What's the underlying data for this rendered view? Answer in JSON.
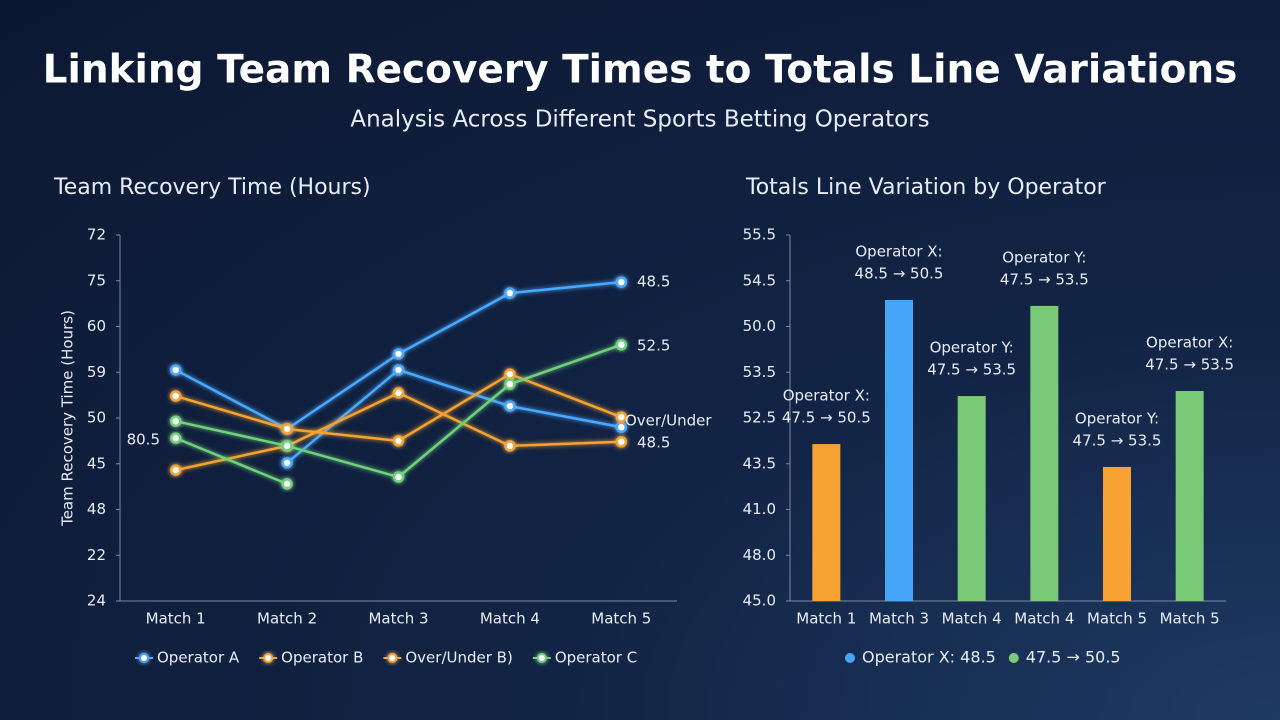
{
  "header": {
    "title": "Linking Team Recovery Times to Totals Line Variations",
    "subtitle": "Analysis Across Different Sports Betting Operators"
  },
  "chart_data": [
    {
      "type": "line",
      "title": "Team Recovery Time (Hours)",
      "y_label": "Team Recovery Time (Hours)",
      "categories": [
        "Match 1",
        "Match 2",
        "Match 3",
        "Match 4",
        "Match 5"
      ],
      "ylim": [
        0,
        8
      ],
      "yticks": [
        {
          "value": 0,
          "label": "24"
        },
        {
          "value": 1,
          "label": "22"
        },
        {
          "value": 2,
          "label": "48"
        },
        {
          "value": 3,
          "label": "45"
        },
        {
          "value": 4,
          "label": "50"
        },
        {
          "value": 5,
          "label": "59"
        },
        {
          "value": 6,
          "label": "60"
        },
        {
          "value": 7,
          "label": "75"
        },
        {
          "value": 8,
          "label": "72"
        }
      ],
      "grid": false,
      "series": [
        {
          "name": "Operator A",
          "color": "#4aa8ff",
          "values": [
            5.05,
            3.76,
            5.4,
            6.73,
            6.97
          ]
        },
        {
          "color": "#4aa8ff",
          "values": [
            null,
            3.02,
            5.05,
            4.26,
            3.8
          ]
        },
        {
          "name": "Operator B",
          "color": "#f5a32e",
          "values": [
            2.86,
            3.39,
            4.55,
            3.39,
            3.48
          ]
        },
        {
          "name": "Over/Under B)",
          "color": "#f5a32e",
          "values": [
            4.48,
            3.76,
            3.5,
            4.96,
            4.02
          ]
        },
        {
          "name": "Operator C",
          "color": "#6fd17a",
          "values": [
            3.93,
            3.39,
            2.71,
            4.74,
            5.6
          ]
        },
        {
          "color": "#6fd17a",
          "values": [
            3.56,
            2.56,
            null,
            null,
            null
          ]
        }
      ],
      "annotations": [
        "48.5",
        "52.5",
        "Over/Under",
        "48.5",
        "80.5"
      ]
    },
    {
      "type": "bar",
      "title": "Totals Line Variation by Operator",
      "categories": [
        "Match 1",
        "Match 3",
        "Match 4",
        "Match 4",
        "Match 5",
        "Match 5"
      ],
      "values": [
        3.43,
        6.58,
        4.48,
        6.45,
        2.93,
        4.59
      ],
      "colors": [
        "#f7a334",
        "#45a6f7",
        "#79c977",
        "#79c977",
        "#f7a334",
        "#79c977"
      ],
      "ylim": [
        0,
        8
      ],
      "yticks": [
        {
          "value": 0,
          "label": "45.0"
        },
        {
          "value": 1,
          "label": "48.0"
        },
        {
          "value": 2,
          "label": "41.0"
        },
        {
          "value": 3,
          "label": "43.5"
        },
        {
          "value": 4,
          "label": "52.5"
        },
        {
          "value": 5,
          "label": "53.5"
        },
        {
          "value": 6,
          "label": "50.0"
        },
        {
          "value": 7,
          "label": "54.5"
        },
        {
          "value": 8,
          "label": "55.5"
        }
      ],
      "annotations": [
        [
          "Operator X:",
          "47.5 → 50.5"
        ],
        [
          "Operator X:",
          "48.5 → 50.5"
        ],
        [
          "Operator Y:",
          "47.5 → 53.5"
        ],
        [
          "Operator Y:",
          "47.5 → 53.5"
        ],
        [
          "Operator Y:",
          "47.5 → 53.5"
        ],
        [
          "Operator X:",
          "47.5 → 53.5"
        ]
      ],
      "legend": [
        {
          "label": "Operator X: 48.5",
          "color": "#45a6f7"
        },
        {
          "label": "47.5 → 50.5",
          "color": "#79c977"
        }
      ]
    }
  ]
}
